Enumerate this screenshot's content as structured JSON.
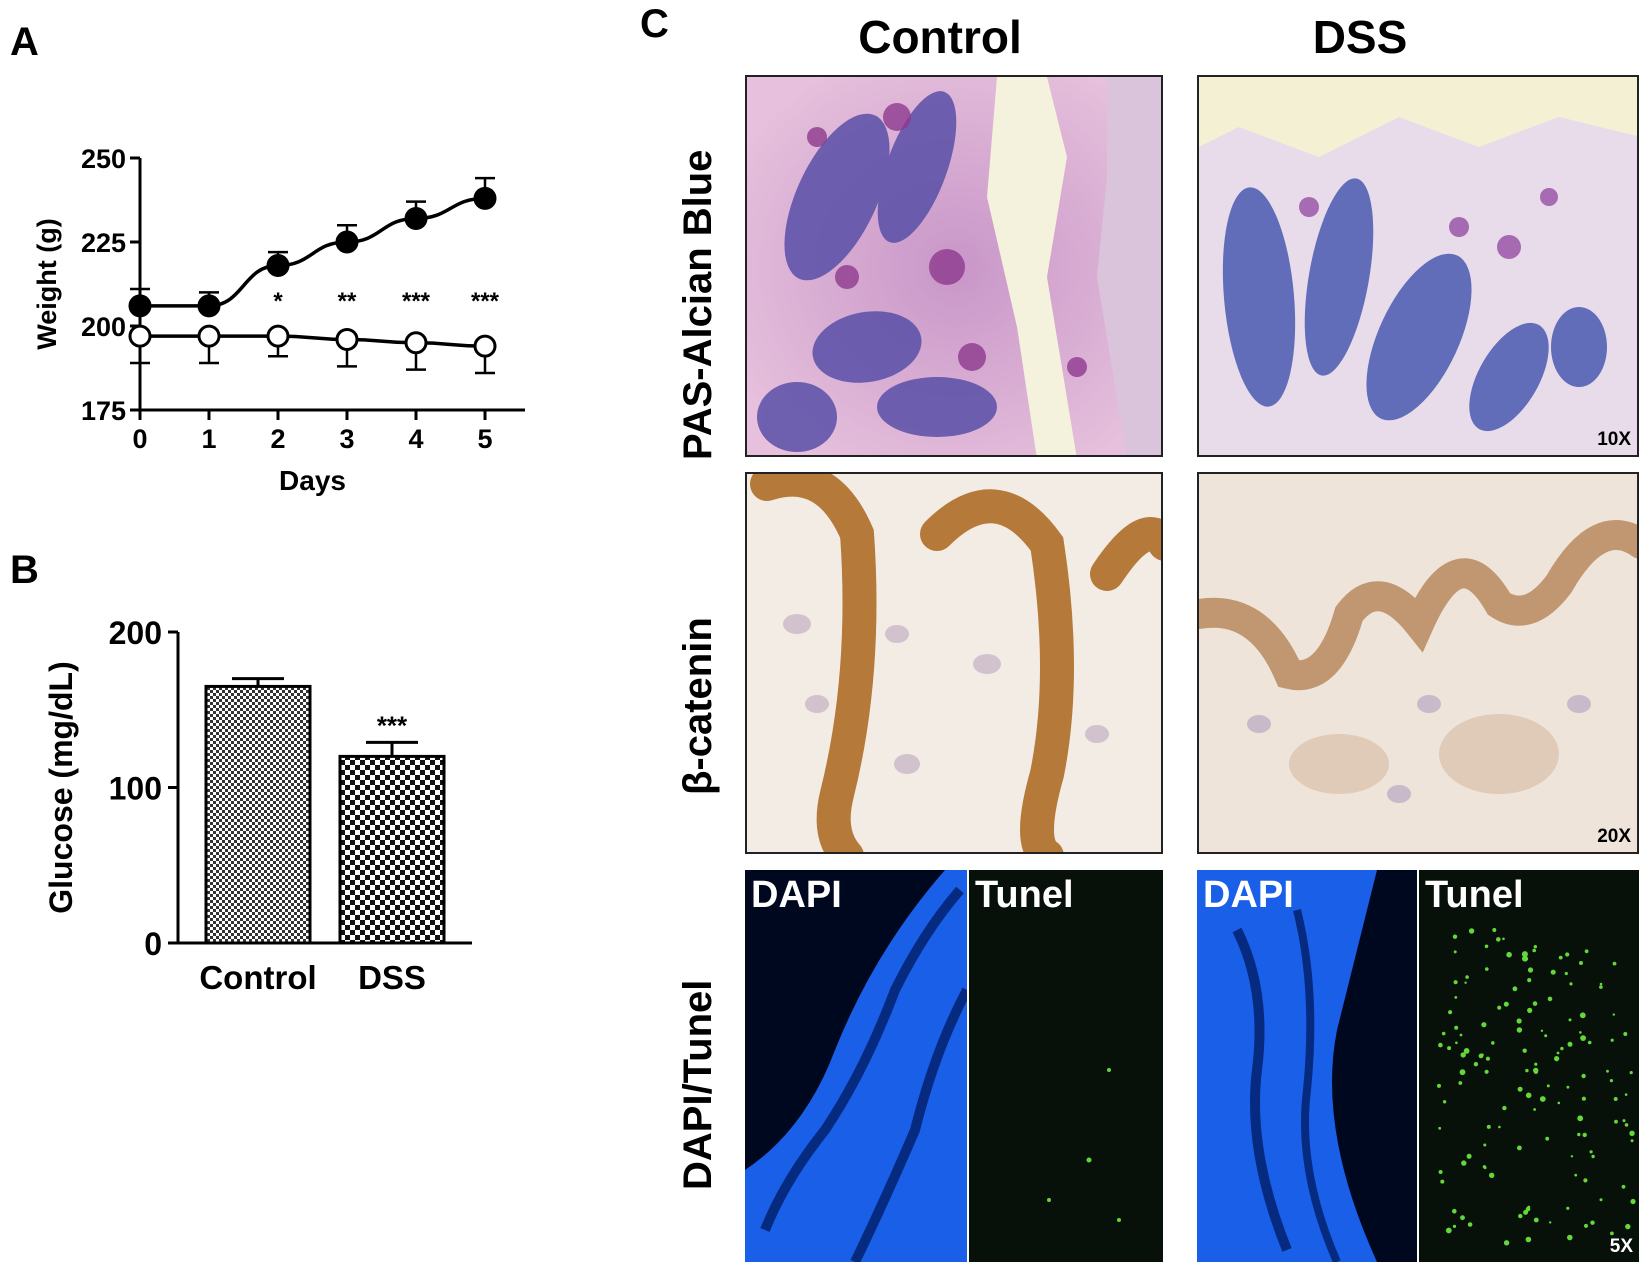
{
  "panels": {
    "a": "A",
    "b": "B",
    "c": "C"
  },
  "chart_data": [
    {
      "type": "line",
      "panel": "A",
      "xlabel": "Days",
      "ylabel": "Weight (g)",
      "x": [
        0,
        1,
        2,
        3,
        4,
        5
      ],
      "xticks": [
        "0",
        "1",
        "2",
        "3",
        "4",
        "5"
      ],
      "yticks": [
        "175",
        "200",
        "225",
        "250"
      ],
      "ylim": [
        175,
        250
      ],
      "xlim": [
        0,
        5
      ],
      "series": [
        {
          "marker": "filled-circle",
          "values": [
            206,
            206,
            218,
            225,
            232,
            238
          ],
          "errors": [
            5,
            4,
            4,
            5,
            5,
            6
          ]
        },
        {
          "marker": "open-circle",
          "values": [
            197,
            197,
            197,
            196,
            195,
            194
          ],
          "errors": [
            8,
            8,
            6,
            8,
            8,
            8
          ]
        }
      ],
      "annotations": [
        {
          "x": 2,
          "text": "*"
        },
        {
          "x": 3,
          "text": "**"
        },
        {
          "x": 4,
          "text": "***"
        },
        {
          "x": 5,
          "text": "***"
        }
      ]
    },
    {
      "type": "bar",
      "panel": "B",
      "ylabel": "Glucose (mg/dL)",
      "categories": [
        "Control",
        "DSS"
      ],
      "values": [
        165,
        120
      ],
      "errors": [
        5,
        9
      ],
      "yticks": [
        "0",
        "100",
        "200"
      ],
      "ylim": [
        0,
        200
      ],
      "annotations": [
        {
          "category": "DSS",
          "text": "***"
        }
      ]
    }
  ],
  "panel_c": {
    "columns": [
      "Control",
      "DSS"
    ],
    "rows": [
      {
        "label": "PAS-Alcian Blue",
        "magnification": "10X"
      },
      {
        "label": "β-catenin",
        "magnification": "20X"
      },
      {
        "label": "DAPI/Tunel",
        "magnification": "5X",
        "sub_labels": [
          "DAPI",
          "Tunel"
        ]
      }
    ]
  }
}
